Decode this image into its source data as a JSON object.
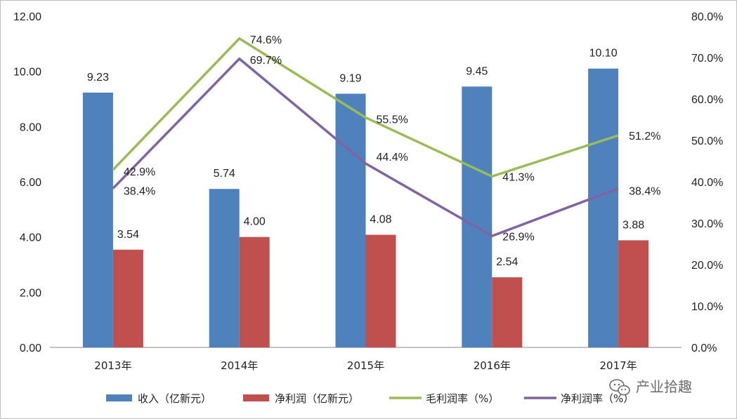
{
  "chart_data": {
    "type": "bar",
    "categories": [
      "2013年",
      "2014年",
      "2015年",
      "2016年",
      "2017年"
    ],
    "bar_series": [
      {
        "name": "收入（亿新元）",
        "values": [
          9.23,
          5.74,
          9.19,
          9.45,
          10.1
        ],
        "labels": [
          "9.23",
          "5.74",
          "9.19",
          "9.45",
          "10.10"
        ],
        "color": "#4f81bd"
      },
      {
        "name": "净利润（亿新元）",
        "values": [
          3.54,
          4.0,
          4.08,
          2.54,
          3.88
        ],
        "labels": [
          "3.54",
          "4.00",
          "4.08",
          "2.54",
          "3.88"
        ],
        "color": "#c0504d"
      }
    ],
    "line_series": [
      {
        "name": "毛利润率（%）",
        "values": [
          42.9,
          74.6,
          55.5,
          41.3,
          51.2
        ],
        "labels": [
          "42.9%",
          "74.6%",
          "55.5%",
          "41.3%",
          "51.2%"
        ],
        "color": "#9bbb59"
      },
      {
        "name": "净利润率（%）",
        "values": [
          38.4,
          69.7,
          44.4,
          26.9,
          38.4
        ],
        "labels": [
          "38.4%",
          "69.7%",
          "44.4%",
          "26.9%",
          "38.4%"
        ],
        "color": "#8064a2"
      }
    ],
    "y_left": {
      "min": 0,
      "max": 12,
      "step": 2,
      "tick_labels": [
        "0.00",
        "2.00",
        "4.00",
        "6.00",
        "8.00",
        "10.00",
        "12.00"
      ]
    },
    "y_right": {
      "min": 0,
      "max": 80,
      "step": 10,
      "tick_labels": [
        "0.0%",
        "10.0%",
        "20.0%",
        "30.0%",
        "40.0%",
        "50.0%",
        "60.0%",
        "70.0%",
        "80.0%"
      ]
    },
    "legend_position": "bottom",
    "grid": false
  },
  "watermark": {
    "text": "产业拾趣",
    "icon": "wechat-icon"
  }
}
